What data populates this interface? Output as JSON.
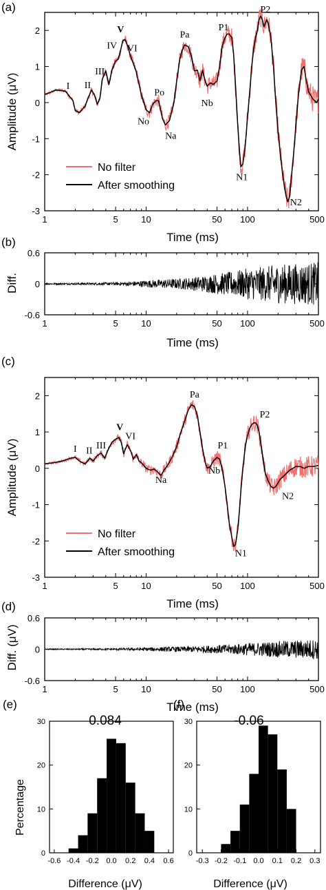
{
  "colors": {
    "no_filter": "#f07070",
    "smoothed": "#000000",
    "axis": "#000000",
    "bar": "#000000"
  },
  "chart_data": [
    {
      "panel": "(a)",
      "type": "line",
      "xscale": "log",
      "xlim": [
        1,
        500
      ],
      "ylim": [
        -3,
        2.5
      ],
      "xlabel": "Time (ms)",
      "ylabel": "Amplitude (μV)",
      "xticks": [
        "1",
        "5",
        "10",
        "50",
        "100",
        "500"
      ],
      "yticks": [
        "-3",
        "-2",
        "-1",
        "0",
        "1",
        "2"
      ],
      "legend": {
        "placement": "lower-left",
        "entries": [
          "No filter",
          "After smoothing"
        ]
      },
      "noise_level": 0.05,
      "series": [
        {
          "name": "After smoothing",
          "x": [
            1,
            1.3,
            1.6,
            1.9,
            2.0,
            2.2,
            2.5,
            2.7,
            2.9,
            3.1,
            3.3,
            3.5,
            3.7,
            4.0,
            4.3,
            4.6,
            5.0,
            5.3,
            5.6,
            5.9,
            6.2,
            6.6,
            7.0,
            8.0,
            9.0,
            10.0,
            10.8,
            11.6,
            12.5,
            13.3,
            14.5,
            15.5,
            17,
            18.8,
            20,
            21.5,
            22.5,
            24,
            26,
            28,
            30,
            32,
            34,
            36,
            38,
            40,
            43,
            46,
            50,
            53,
            56,
            60,
            63,
            66,
            70,
            73,
            76,
            80,
            83,
            86,
            90,
            95,
            100,
            105,
            110,
            115,
            120,
            125,
            130,
            135,
            140,
            145,
            150,
            155,
            160,
            170,
            180,
            190,
            200,
            210,
            220,
            230,
            240,
            250,
            260,
            270,
            285,
            300,
            320,
            340,
            360,
            380,
            400,
            420,
            440,
            460,
            480,
            500
          ],
          "y": [
            0.22,
            0.35,
            0.32,
            0.05,
            -0.22,
            -0.28,
            -0.1,
            0.15,
            0.35,
            0.2,
            -0.05,
            0.12,
            0.65,
            0.88,
            0.5,
            0.9,
            1.15,
            1.2,
            1.45,
            1.72,
            1.75,
            1.55,
            1.3,
            0.85,
            0.2,
            -0.2,
            -0.28,
            -0.05,
            0.05,
            0.05,
            -0.45,
            -0.62,
            -0.5,
            0.0,
            0.6,
            1.2,
            1.42,
            1.6,
            1.55,
            1.28,
            0.88,
            0.9,
            0.6,
            0.9,
            0.62,
            0.45,
            0.55,
            0.5,
            0.6,
            1.0,
            1.55,
            1.8,
            1.9,
            1.9,
            1.8,
            1.3,
            0.5,
            -0.6,
            -1.3,
            -1.78,
            -1.7,
            -1.2,
            -0.4,
            0.3,
            1.0,
            1.5,
            1.8,
            2.0,
            2.3,
            2.4,
            2.3,
            2.1,
            2.2,
            2.3,
            2.2,
            1.8,
            1.0,
            0.0,
            -0.8,
            -1.4,
            -1.9,
            -2.3,
            -2.6,
            -2.75,
            -2.6,
            -2.1,
            -1.4,
            -0.6,
            0.3,
            0.9,
            1.0,
            0.6,
            0.3,
            0.2,
            0.1,
            0.05,
            0.0,
            0.1
          ]
        }
      ],
      "annotations": [
        {
          "text": "I",
          "x": 1.7,
          "y": 0.38
        },
        {
          "text": "II",
          "x": 2.65,
          "y": 0.4
        },
        {
          "text": "III",
          "x": 3.5,
          "y": 0.78
        },
        {
          "text": "IV",
          "x": 4.6,
          "y": 1.5
        },
        {
          "text": "V",
          "x": 5.6,
          "y": 1.95,
          "bold": true
        },
        {
          "text": "VI",
          "x": 7.3,
          "y": 1.42
        },
        {
          "text": "No",
          "x": 9.4,
          "y": -0.6
        },
        {
          "text": "Po",
          "x": 13.5,
          "y": 0.2
        },
        {
          "text": "Na",
          "x": 17.5,
          "y": -1.0
        },
        {
          "text": "Pa",
          "x": 24,
          "y": 1.8
        },
        {
          "text": "Nb",
          "x": 40,
          "y": -0.1
        },
        {
          "text": "P1",
          "x": 58,
          "y": 2.0
        },
        {
          "text": "N1",
          "x": 88,
          "y": -2.15
        },
        {
          "text": "P2",
          "x": 150,
          "y": 2.5
        },
        {
          "text": "N2",
          "x": 300,
          "y": -2.85
        }
      ]
    },
    {
      "panel": "(b)",
      "type": "line",
      "xscale": "log",
      "xlim": [
        1,
        500
      ],
      "ylim": [
        -0.6,
        0.6
      ],
      "xlabel": "Time (ms)",
      "ylabel": "Diff.",
      "xticks": [
        "1",
        "5",
        "10",
        "50",
        "100",
        "500"
      ],
      "yticks": [
        "-0.6",
        "0",
        "0.6"
      ],
      "noise_envelope": {
        "x": [
          1,
          5,
          10,
          20,
          50,
          100,
          200,
          500
        ],
        "amp": [
          0.015,
          0.03,
          0.07,
          0.1,
          0.2,
          0.3,
          0.38,
          0.42
        ]
      }
    },
    {
      "panel": "(c)",
      "type": "line",
      "xscale": "log",
      "xlim": [
        1,
        500
      ],
      "ylim": [
        -3,
        2.5
      ],
      "xlabel": "Time (ms)",
      "ylabel": "Amplitude (μV)",
      "xticks": [
        "1",
        "5",
        "10",
        "50",
        "100",
        "500"
      ],
      "yticks": [
        "-3",
        "-2",
        "-1",
        "0",
        "1",
        "2"
      ],
      "legend": {
        "placement": "lower-left",
        "entries": [
          "No filter",
          "After smoothing"
        ]
      },
      "noise_level": 0.04,
      "series": [
        {
          "name": "After smoothing",
          "x": [
            1,
            1.2,
            1.5,
            1.8,
            2.0,
            2.2,
            2.5,
            2.8,
            3.0,
            3.3,
            3.6,
            3.9,
            4.2,
            4.6,
            5.0,
            5.4,
            5.7,
            6.0,
            6.5,
            7.0,
            7.5,
            8.0,
            8.5,
            9.0,
            10,
            11,
            12,
            13,
            14,
            15,
            16,
            18,
            20,
            22,
            24,
            26,
            28,
            30,
            32,
            34,
            36,
            38,
            40,
            43,
            46,
            50,
            53,
            56,
            60,
            63,
            66,
            70,
            73,
            76,
            80,
            83,
            86,
            90,
            95,
            100,
            105,
            110,
            115,
            120,
            125,
            130,
            135,
            140,
            145,
            150,
            160,
            170,
            180,
            190,
            200,
            210,
            220,
            230,
            240,
            260,
            280,
            300,
            330,
            360,
            400,
            450,
            500
          ],
          "y": [
            0.12,
            0.15,
            0.2,
            0.28,
            0.3,
            0.2,
            0.12,
            0.28,
            0.2,
            0.35,
            0.42,
            0.28,
            0.5,
            0.72,
            0.8,
            0.85,
            0.7,
            0.4,
            0.65,
            0.5,
            0.25,
            0.38,
            0.2,
            0.15,
            0.0,
            -0.05,
            -0.02,
            -0.1,
            -0.2,
            -0.05,
            0.05,
            0.3,
            0.6,
            1.0,
            1.3,
            1.6,
            1.75,
            1.7,
            1.45,
            1.0,
            0.55,
            0.2,
            0.0,
            0.05,
            0.2,
            0.3,
            0.25,
            0.0,
            -0.5,
            -1.0,
            -1.5,
            -1.9,
            -2.15,
            -2.1,
            -1.7,
            -1.2,
            -0.6,
            0.0,
            0.6,
            0.9,
            1.1,
            1.2,
            1.25,
            1.25,
            1.18,
            1.0,
            0.7,
            0.4,
            0.1,
            -0.15,
            -0.35,
            -0.5,
            -0.55,
            -0.5,
            -0.4,
            -0.3,
            -0.25,
            -0.2,
            -0.15,
            -0.05,
            0.0,
            0.05,
            0.05,
            0.0,
            0.05,
            0.05,
            0.08
          ]
        }
      ],
      "annotations": [
        {
          "text": "I",
          "x": 2.0,
          "y": 0.45
        },
        {
          "text": "II",
          "x": 2.75,
          "y": 0.4
        },
        {
          "text": "III",
          "x": 3.6,
          "y": 0.55
        },
        {
          "text": "V",
          "x": 5.5,
          "y": 1.05,
          "bold": true
        },
        {
          "text": "VI",
          "x": 7.0,
          "y": 0.8
        },
        {
          "text": "Na",
          "x": 14,
          "y": -0.4
        },
        {
          "text": "Pa",
          "x": 30,
          "y": 1.95
        },
        {
          "text": "P1",
          "x": 57,
          "y": 0.55
        },
        {
          "text": "Nb",
          "x": 47,
          "y": -0.15
        },
        {
          "text": "N1",
          "x": 86,
          "y": -2.42
        },
        {
          "text": "P2",
          "x": 148,
          "y": 1.4
        },
        {
          "text": "N2",
          "x": 250,
          "y": -0.85
        }
      ]
    },
    {
      "panel": "(d)",
      "type": "line",
      "xscale": "log",
      "xlim": [
        1,
        500
      ],
      "ylim": [
        -0.6,
        0.6
      ],
      "xlabel": "Time (ms)",
      "ylabel": "Diff. (μV)",
      "xticks": [
        "1",
        "5",
        "10",
        "50",
        "100",
        "500"
      ],
      "yticks": [
        "-0.6",
        "0",
        "0.6"
      ],
      "noise_envelope": {
        "x": [
          1,
          5,
          10,
          20,
          50,
          100,
          200,
          500
        ],
        "amp": [
          0.01,
          0.02,
          0.035,
          0.05,
          0.08,
          0.12,
          0.16,
          0.2
        ]
      }
    },
    {
      "panel": "(e)",
      "type": "bar",
      "xlim": [
        -0.65,
        0.65
      ],
      "ylim": [
        0,
        30
      ],
      "xlabel": "Difference (μV)",
      "ylabel": "Percentage",
      "title": "0.084",
      "xticks": [
        "-0.6",
        "-0.4",
        "-0.2",
        "0.0",
        "0.2",
        "0.4",
        "0.6"
      ],
      "yticks": [
        "0",
        "10",
        "20",
        "30"
      ],
      "bin_edges": [
        -0.45,
        -0.35,
        -0.25,
        -0.15,
        -0.05,
        0.05,
        0.15,
        0.25,
        0.35,
        0.45
      ],
      "values": [
        1,
        4,
        9,
        17,
        26,
        25,
        16,
        9,
        5
      ]
    },
    {
      "panel": "(f)",
      "type": "bar",
      "xlim": [
        -0.33,
        0.33
      ],
      "ylim": [
        0,
        30
      ],
      "xlabel": "Difference (μV)",
      "title": "-0.06",
      "xticks": [
        "-0.3",
        "-0.2",
        "-0.1",
        "0.0",
        "0.1",
        "0.2",
        "0.3"
      ],
      "yticks": [
        "0",
        "10",
        "20",
        "30"
      ],
      "bin_edges": [
        -0.2,
        -0.15,
        -0.1,
        -0.05,
        0.0,
        0.05,
        0.1,
        0.15,
        0.2
      ],
      "values": [
        2,
        5,
        11,
        18,
        29,
        27,
        19,
        10
      ]
    }
  ]
}
